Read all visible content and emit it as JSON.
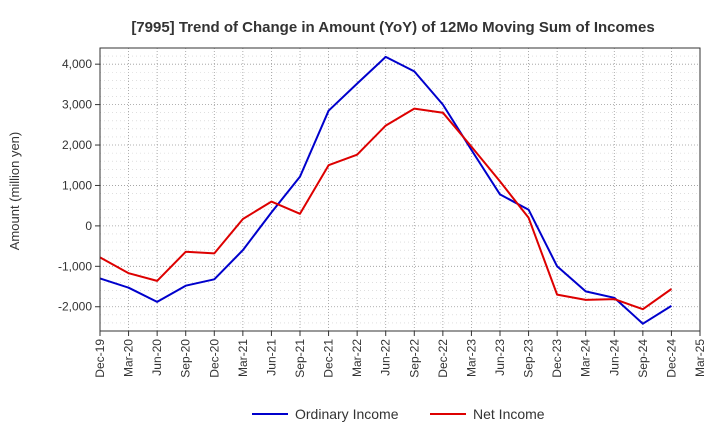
{
  "chart_data": {
    "type": "line",
    "title": "[7995]  Trend of Change in Amount (YoY) of 12Mo Moving Sum of Incomes",
    "xlabel": "",
    "ylabel": "Amount (million yen)",
    "ylim": [
      -2600,
      4400
    ],
    "yticks": [
      -2000,
      -1000,
      0,
      1000,
      2000,
      3000,
      4000
    ],
    "ytick_labels": [
      "-2,000",
      "-1,000",
      "0",
      "1,000",
      "2,000",
      "3,000",
      "4,000"
    ],
    "categories": [
      "Dec-19",
      "Mar-20",
      "Jun-20",
      "Sep-20",
      "Dec-20",
      "Mar-21",
      "Jun-21",
      "Sep-21",
      "Dec-21",
      "Mar-22",
      "Jun-22",
      "Sep-22",
      "Dec-22",
      "Mar-23",
      "Jun-23",
      "Sep-23",
      "Dec-23",
      "Mar-24",
      "Jun-24",
      "Sep-24",
      "Dec-24",
      "Mar-25"
    ],
    "grid": true,
    "legend_position": "bottom",
    "series": [
      {
        "name": "Ordinary Income",
        "color": "#0000cc",
        "values": [
          -1300,
          -1530,
          -1880,
          -1480,
          -1320,
          -600,
          330,
          1220,
          2850,
          3520,
          4180,
          3820,
          3000,
          1880,
          780,
          400,
          -1000,
          -1620,
          -1780,
          -2420,
          -1980,
          null
        ]
      },
      {
        "name": "Net Income",
        "color": "#dd0000",
        "values": [
          -780,
          -1170,
          -1360,
          -640,
          -680,
          170,
          600,
          300,
          1500,
          1760,
          2480,
          2900,
          2800,
          1960,
          1100,
          200,
          -1700,
          -1830,
          -1810,
          -2060,
          -1560,
          null
        ]
      }
    ]
  }
}
